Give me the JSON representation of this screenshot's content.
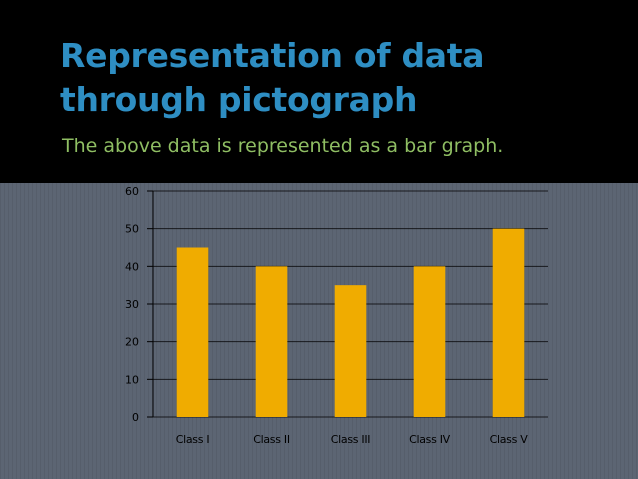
{
  "slide": {
    "title": "Representation of data through pictograph",
    "subtitle": "The above data is represented as a bar graph."
  },
  "colors": {
    "background": "#000000",
    "title": "#2e8ec3",
    "subtitle": "#8fbe63",
    "chart_background": "#5c6573",
    "bar": "#f0ac00"
  },
  "chart_data": {
    "type": "bar",
    "categories": [
      "Class I",
      "Class II",
      "Class III",
      "Class IV",
      "Class V"
    ],
    "values": [
      45,
      40,
      35,
      40,
      50
    ],
    "ylim": [
      0,
      60
    ],
    "yticks": [
      0,
      10,
      20,
      30,
      40,
      50,
      60
    ],
    "grid": true,
    "legend": "none"
  }
}
